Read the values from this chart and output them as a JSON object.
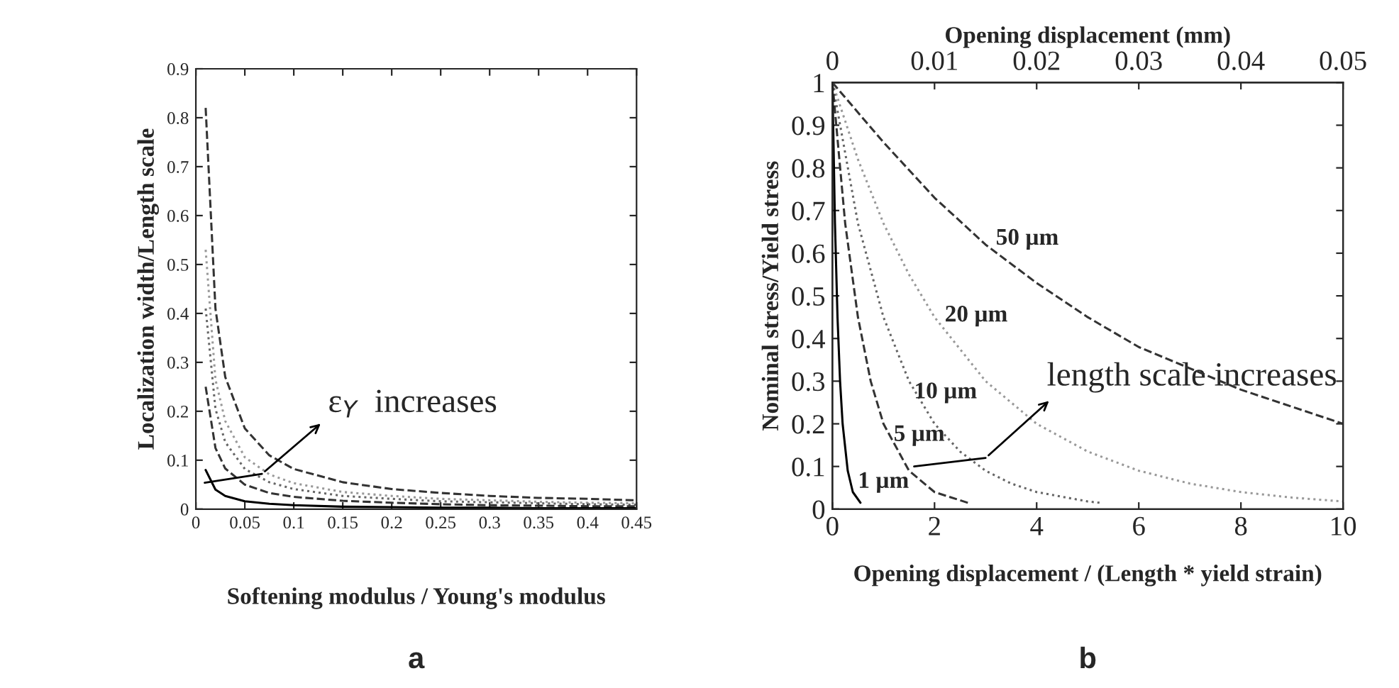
{
  "chart_data": [
    {
      "type": "line",
      "title": "a",
      "xlabel": "Softening modulus / Young's modulus",
      "ylabel": "Localization width/Length scale",
      "x": [
        0.01,
        0.02,
        0.03,
        0.05,
        0.075,
        0.1,
        0.15,
        0.2,
        0.25,
        0.3,
        0.35,
        0.4,
        0.45
      ],
      "series": [
        {
          "color": "#333333",
          "line_style": "dashed",
          "values": [
            0.82,
            0.41,
            0.27,
            0.165,
            0.11,
            0.082,
            0.055,
            0.041,
            0.033,
            0.027,
            0.023,
            0.021,
            0.018
          ]
        },
        {
          "color": "#999999",
          "line_style": "dotted",
          "values": [
            0.53,
            0.265,
            0.18,
            0.106,
            0.071,
            0.053,
            0.035,
            0.027,
            0.021,
            0.018,
            0.015,
            0.013,
            0.012
          ]
        },
        {
          "color": "#666666",
          "line_style": "dotted",
          "values": [
            0.41,
            0.205,
            0.137,
            0.082,
            0.055,
            0.041,
            0.027,
            0.021,
            0.016,
            0.014,
            0.012,
            0.01,
            0.009
          ]
        },
        {
          "color": "#333333",
          "line_style": "dashed",
          "values": [
            0.25,
            0.125,
            0.083,
            0.05,
            0.033,
            0.025,
            0.017,
            0.013,
            0.01,
            0.008,
            0.007,
            0.006,
            0.006
          ]
        },
        {
          "color": "#000000",
          "line_style": "solid",
          "values": [
            0.08,
            0.04,
            0.027,
            0.016,
            0.011,
            0.008,
            0.005,
            0.004,
            0.003,
            0.003,
            0.002,
            0.002,
            0.002
          ]
        }
      ],
      "xlim": [
        0,
        0.45
      ],
      "xticks": [
        0,
        0.05,
        0.1,
        0.15,
        0.2,
        0.25,
        0.3,
        0.35,
        0.4,
        0.45
      ],
      "ylim": [
        0,
        0.9
      ],
      "yticks": [
        0,
        0.1,
        0.2,
        0.3,
        0.4,
        0.5,
        0.6,
        0.7,
        0.8,
        0.9
      ],
      "annotations": [
        "ε$_{Y}$  increases"
      ],
      "grid": false,
      "legend": false
    },
    {
      "type": "line",
      "title": "b",
      "xlabel": "Opening displacement / (Length * yield strain)",
      "ylabel": "Nominal stress/Yield stress",
      "x2label": "Opening displacement (mm)",
      "series": [
        {
          "color": "#333333",
          "line_style": "dashed",
          "x": [
            0,
            1,
            2,
            3,
            4,
            5,
            6,
            7,
            8,
            9,
            10
          ],
          "values": [
            1,
            0.86,
            0.73,
            0.62,
            0.53,
            0.45,
            0.38,
            0.33,
            0.28,
            0.24,
            0.2
          ]
        },
        {
          "color": "#999999",
          "line_style": "dotted",
          "x": [
            0,
            0.5,
            1,
            1.5,
            2,
            3,
            4,
            5,
            6,
            7,
            8,
            9,
            10
          ],
          "values": [
            1,
            0.82,
            0.67,
            0.55,
            0.45,
            0.3,
            0.2,
            0.135,
            0.09,
            0.06,
            0.04,
            0.027,
            0.018
          ]
        },
        {
          "color": "#666666",
          "line_style": "dotted",
          "x": [
            0,
            0.5,
            1,
            1.5,
            2,
            2.5,
            3,
            3.5,
            4,
            5,
            5.3
          ],
          "values": [
            1,
            0.67,
            0.45,
            0.3,
            0.2,
            0.135,
            0.09,
            0.06,
            0.04,
            0.018,
            0.014
          ]
        },
        {
          "color": "#333333",
          "line_style": "dashed",
          "x": [
            0,
            0.25,
            0.5,
            0.75,
            1,
            1.5,
            2,
            2.7
          ],
          "values": [
            1,
            0.67,
            0.45,
            0.3,
            0.2,
            0.09,
            0.04,
            0.013
          ]
        },
        {
          "color": "#000000",
          "line_style": "solid",
          "x": [
            0,
            0.05,
            0.1,
            0.15,
            0.2,
            0.3,
            0.4,
            0.55
          ],
          "values": [
            1,
            0.67,
            0.45,
            0.3,
            0.2,
            0.09,
            0.04,
            0.015
          ]
        }
      ],
      "xlim": [
        0,
        10
      ],
      "xticks": [
        0,
        2,
        4,
        6,
        8,
        10
      ],
      "x2lim": [
        0,
        0.05
      ],
      "x2ticks": [
        0,
        0.01,
        0.02,
        0.03,
        0.04,
        0.05
      ],
      "ylim": [
        0,
        1
      ],
      "yticks": [
        0,
        0.1,
        0.2,
        0.3,
        0.4,
        0.5,
        0.6,
        0.7,
        0.8,
        0.9,
        1
      ],
      "annotations": [
        {
          "text": "50 µm",
          "x": 3.2,
          "y": 0.62
        },
        {
          "text": "20 µm",
          "x": 2.2,
          "y": 0.44
        },
        {
          "text": "10 µm",
          "x": 1.6,
          "y": 0.26
        },
        {
          "text": "5 µm",
          "x": 1.2,
          "y": 0.16
        },
        {
          "text": "1 µm",
          "x": 0.5,
          "y": 0.05
        },
        "length scale increases"
      ],
      "grid": false,
      "legend": false
    }
  ]
}
